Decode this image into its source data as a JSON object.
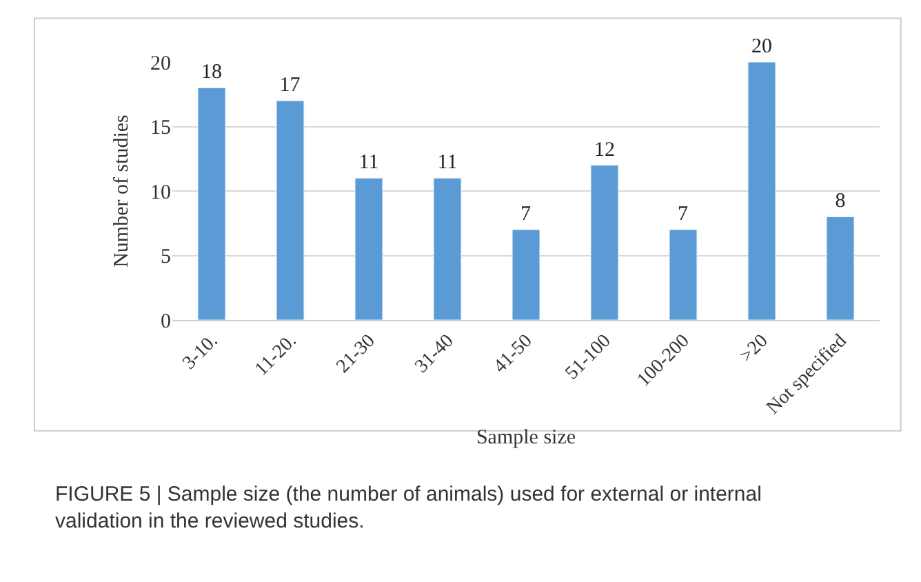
{
  "chart_data": {
    "type": "bar",
    "xlabel": "Sample size",
    "ylabel": "Number of studies",
    "categories": [
      "3-10.",
      "11-20.",
      "21-30",
      "31-40",
      "41-50",
      "51-100",
      "100-200",
      ">20",
      "Not specified"
    ],
    "values": [
      18,
      17,
      11,
      11,
      7,
      12,
      7,
      20,
      8
    ],
    "color": "#5b9bd5",
    "ylim": [
      0,
      20
    ],
    "yticks": [
      0,
      5,
      10,
      15,
      20
    ],
    "grid": "y",
    "data_labels": true,
    "legend": false,
    "annotations": [
      "FIGURE 5 | Sample size (the number of animals) used for external or internal validation in the reviewed studies."
    ]
  }
}
